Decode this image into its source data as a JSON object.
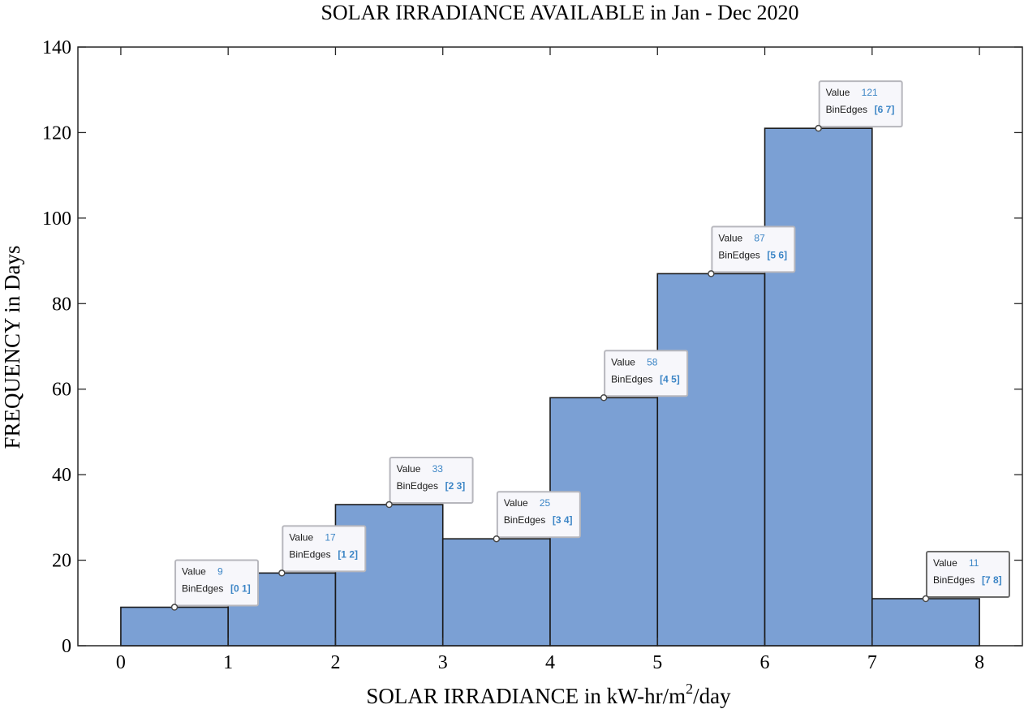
{
  "chart_data": {
    "type": "bar",
    "title": "SOLAR IRRADIANCE AVAILABLE in Jan - Dec 2020",
    "xlabel_main": "SOLAR IRRADIANCE in kW-hr/m",
    "xlabel_sup": "2",
    "xlabel_tail": "/day",
    "ylabel": "FREQUENCY in Days",
    "bin_edges": [
      0,
      1,
      2,
      3,
      4,
      5,
      6,
      7,
      8
    ],
    "values": [
      9,
      17,
      33,
      25,
      58,
      87,
      121,
      11
    ],
    "xlim": [
      -0.4,
      8.4
    ],
    "ylim": [
      0,
      140
    ],
    "xticks": [
      0,
      1,
      2,
      3,
      4,
      5,
      6,
      7,
      8
    ],
    "yticks": [
      0,
      20,
      40,
      60,
      80,
      100,
      120,
      140
    ],
    "bar_color": "#7ba0d4",
    "bar_edge_color": "#1a1a1a",
    "grid": false,
    "datatips": [
      {
        "value_label": "Value",
        "value": "9",
        "edges_label": "BinEdges",
        "edges": "[0 1]"
      },
      {
        "value_label": "Value",
        "value": "17",
        "edges_label": "BinEdges",
        "edges": "[1 2]"
      },
      {
        "value_label": "Value",
        "value": "33",
        "edges_label": "BinEdges",
        "edges": "[2 3]"
      },
      {
        "value_label": "Value",
        "value": "25",
        "edges_label": "BinEdges",
        "edges": "[3 4]"
      },
      {
        "value_label": "Value",
        "value": "58",
        "edges_label": "BinEdges",
        "edges": "[4 5]"
      },
      {
        "value_label": "Value",
        "value": "87",
        "edges_label": "BinEdges",
        "edges": "[5 6]"
      },
      {
        "value_label": "Value",
        "value": "121",
        "edges_label": "BinEdges",
        "edges": "[6 7]"
      },
      {
        "value_label": "Value",
        "value": "11",
        "edges_label": "BinEdges",
        "edges": "[7 8]"
      }
    ]
  }
}
